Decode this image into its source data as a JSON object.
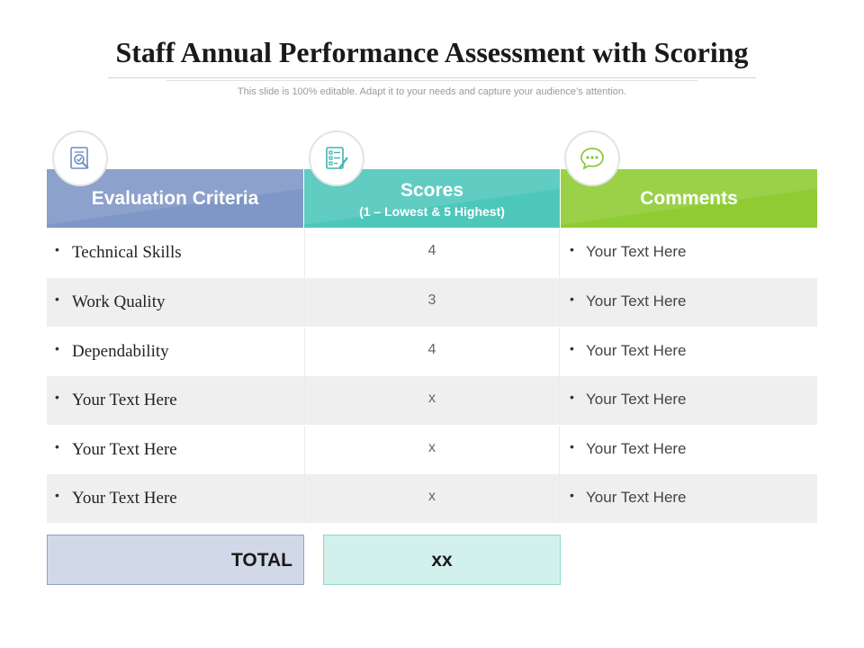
{
  "slide": {
    "title": "Staff Annual Performance Assessment with Scoring",
    "subtitle": "This slide is 100% editable. Adapt it to your needs and capture your audience’s attention."
  },
  "colors": {
    "evaluation_header": "#7f97c6",
    "scores_header": "#4ec7bb",
    "comments_header": "#8fcc34",
    "total_label_bg": "#d1d9e8",
    "total_value_bg": "#d2f0ec",
    "shaded_row": "#efefef"
  },
  "headers": {
    "criteria": {
      "label": "Evaluation Criteria",
      "icon": "document-check-icon"
    },
    "scores": {
      "label": "Scores",
      "sublabel": "(1 – Lowest & 5 Highest)",
      "icon": "checklist-icon"
    },
    "comments": {
      "label": "Comments",
      "icon": "speech-bubble-icon"
    }
  },
  "rows": [
    {
      "criteria": "Technical Skills",
      "score": "4",
      "comment": "Your Text Here"
    },
    {
      "criteria": "Work Quality",
      "score": "3",
      "comment": "Your Text Here"
    },
    {
      "criteria": "Dependability",
      "score": "4",
      "comment": "Your Text Here"
    },
    {
      "criteria": "Your Text Here",
      "score": "x",
      "comment": "Your Text Here"
    },
    {
      "criteria": "Your Text Here",
      "score": "x",
      "comment": "Your Text Here"
    },
    {
      "criteria": "Your Text Here",
      "score": "x",
      "comment": "Your Text Here"
    }
  ],
  "bullet": "•",
  "total": {
    "label": "TOTAL",
    "value": "xx"
  }
}
